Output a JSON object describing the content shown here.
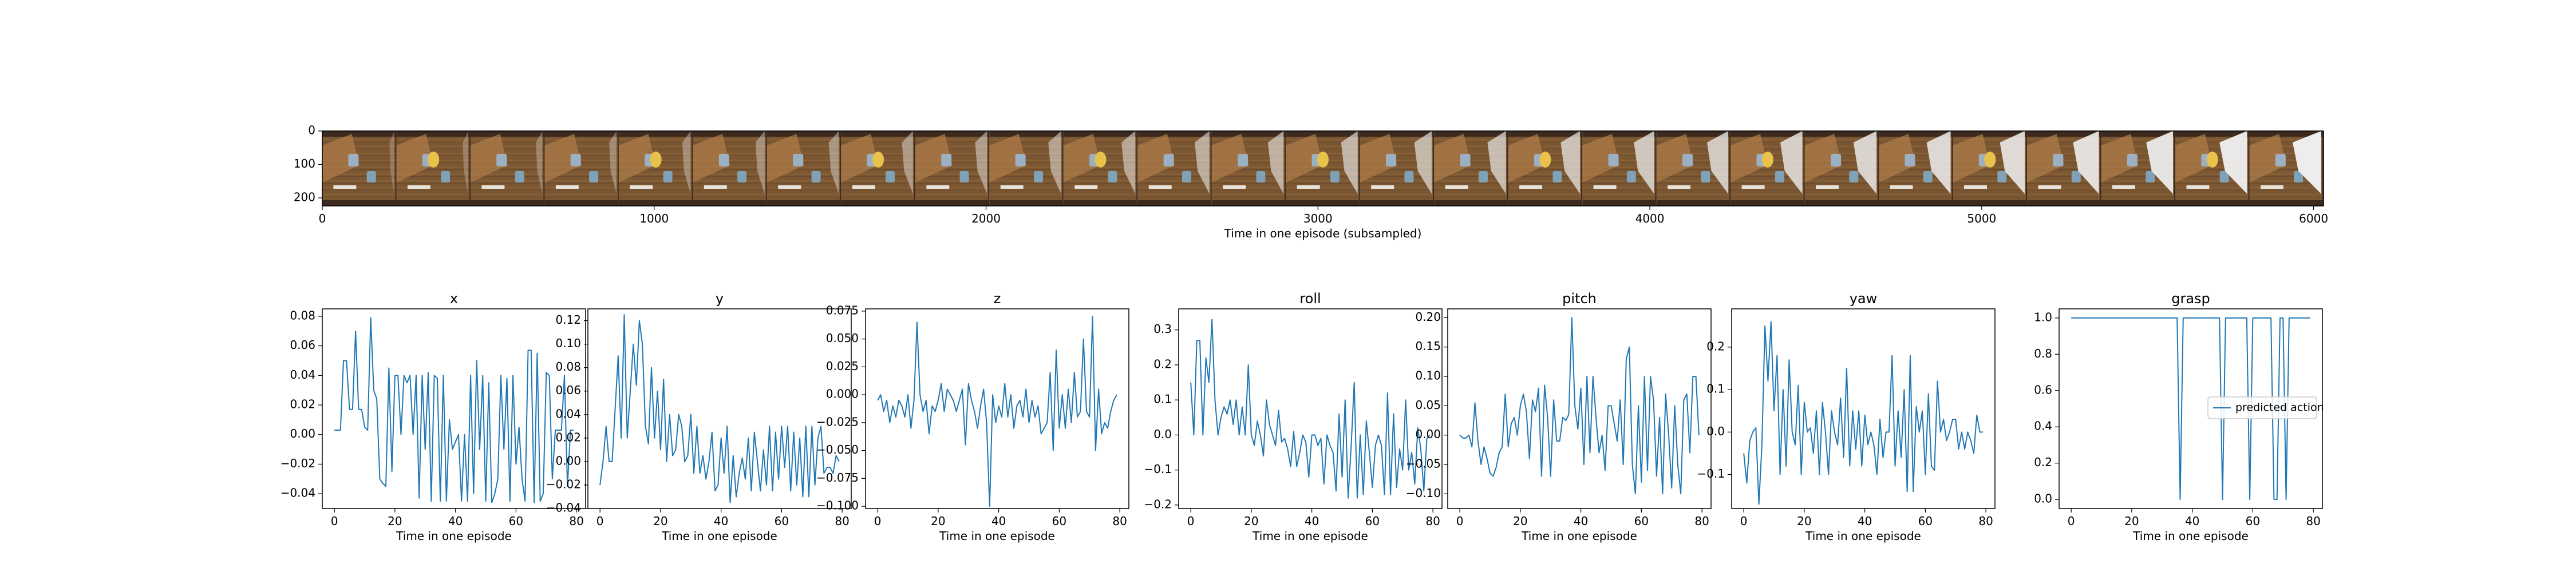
{
  "figure": {
    "strip": {
      "xlabel": "Time in one episode (subsampled)",
      "xticks": [
        0,
        1000,
        2000,
        3000,
        4000,
        5000,
        6000
      ],
      "yticks": [
        0,
        100,
        200
      ],
      "xlim": [
        0,
        6030
      ],
      "ylim": [
        224,
        0
      ],
      "frame_count": 27
    }
  },
  "chart_data": [
    {
      "type": "line",
      "title": "x",
      "xlabel": "Time in one episode",
      "xlim": [
        -4,
        83
      ],
      "ylim": [
        -0.05,
        0.085
      ],
      "xticks": [
        0,
        20,
        40,
        60,
        80
      ],
      "yticks": [
        -0.04,
        -0.02,
        0.0,
        0.02,
        0.04,
        0.06,
        0.08
      ],
      "ytick_labels": [
        "−0.04",
        "−0.02",
        "0.00",
        "0.02",
        "0.04",
        "0.06",
        "0.08"
      ],
      "color": "#1f77b4",
      "series": [
        {
          "values": [
            0.003,
            0.003,
            0.003,
            0.05,
            0.05,
            0.017,
            0.017,
            0.07,
            0.017,
            0.017,
            0.005,
            0.003,
            0.079,
            0.03,
            0.024,
            -0.03,
            -0.033,
            -0.035,
            0.045,
            -0.025,
            0.04,
            0.04,
            0.0,
            0.04,
            0.035,
            0.04,
            0.0,
            0.04,
            -0.043,
            0.04,
            -0.01,
            0.042,
            -0.045,
            0.04,
            0.038,
            -0.045,
            0.04,
            -0.045,
            0.01,
            -0.01,
            -0.005,
            0.0,
            -0.045,
            0.0,
            -0.045,
            0.04,
            -0.04,
            0.05,
            -0.01,
            0.04,
            -0.045,
            0.035,
            -0.046,
            -0.04,
            -0.03,
            0.04,
            -0.01,
            0.038,
            -0.045,
            0.04,
            -0.02,
            0.005,
            -0.03,
            -0.045,
            0.057,
            0.057,
            -0.046,
            0.055,
            -0.045,
            -0.04,
            0.042,
            0.04,
            -0.03,
            0.003,
            0.003,
            0.003,
            0.04,
            -0.035,
            0.003,
            0.003
          ]
        }
      ]
    },
    {
      "type": "line",
      "title": "y",
      "xlabel": "Time in one episode",
      "xlim": [
        -4,
        83
      ],
      "ylim": [
        -0.04,
        0.13
      ],
      "xticks": [
        0,
        20,
        40,
        60,
        80
      ],
      "yticks": [
        -0.04,
        -0.02,
        0.0,
        0.02,
        0.04,
        0.06,
        0.08,
        0.1,
        0.12
      ],
      "ytick_labels": [
        "−0.04",
        "−0.02",
        "0.00",
        "0.02",
        "0.04",
        "0.06",
        "0.08",
        "0.10",
        "0.12"
      ],
      "color": "#1f77b4",
      "series": [
        {
          "values": [
            -0.02,
            0.0,
            0.03,
            0.0,
            0.0,
            0.045,
            0.09,
            0.02,
            0.125,
            0.02,
            0.06,
            0.1,
            0.065,
            0.12,
            0.1,
            0.03,
            0.015,
            0.08,
            0.02,
            0.06,
            0.01,
            0.07,
            0.0,
            0.04,
            0.005,
            0.01,
            0.04,
            0.03,
            0.0,
            0.005,
            0.04,
            -0.01,
            0.03,
            -0.01,
            0.005,
            -0.015,
            0.0,
            0.025,
            -0.025,
            -0.02,
            0.02,
            -0.01,
            0.03,
            -0.035,
            0.005,
            -0.03,
            -0.01,
            0.003,
            -0.015,
            0.02,
            -0.025,
            0.025,
            0.0,
            -0.025,
            0.01,
            -0.02,
            0.03,
            -0.025,
            0.025,
            -0.015,
            0.03,
            -0.005,
            0.03,
            -0.025,
            0.025,
            -0.02,
            0.02,
            -0.03,
            0.03,
            -0.03,
            0.03,
            -0.02,
            0.02,
            0.03,
            -0.01,
            -0.005,
            -0.005,
            -0.01,
            0.005,
            0.0
          ]
        }
      ]
    },
    {
      "type": "line",
      "title": "z",
      "xlabel": "Time in one episode",
      "xlim": [
        -4,
        83
      ],
      "ylim": [
        -0.102,
        0.077
      ],
      "xticks": [
        0,
        20,
        40,
        60,
        80
      ],
      "yticks": [
        -0.1,
        -0.075,
        -0.05,
        -0.025,
        0.0,
        0.025,
        0.05,
        0.075
      ],
      "ytick_labels": [
        "−0.100",
        "−0.075",
        "−0.050",
        "−0.025",
        "0.000",
        "0.025",
        "0.050",
        "0.075"
      ],
      "color": "#1f77b4",
      "series": [
        {
          "values": [
            -0.005,
            0.0,
            -0.015,
            -0.005,
            -0.025,
            -0.01,
            -0.02,
            -0.005,
            -0.01,
            -0.02,
            0.0,
            -0.03,
            -0.005,
            0.065,
            0.0,
            -0.015,
            -0.005,
            -0.035,
            -0.01,
            -0.015,
            -0.005,
            0.01,
            -0.015,
            0.005,
            0.0,
            -0.005,
            -0.015,
            -0.005,
            0.005,
            -0.045,
            0.01,
            -0.005,
            -0.015,
            -0.03,
            -0.01,
            0.005,
            -0.025,
            -0.1,
            0.0,
            -0.025,
            -0.01,
            -0.02,
            0.01,
            -0.02,
            0.0,
            -0.03,
            -0.01,
            -0.005,
            -0.02,
            0.005,
            -0.025,
            -0.005,
            -0.02,
            -0.01,
            -0.035,
            -0.03,
            -0.025,
            0.02,
            -0.05,
            0.04,
            -0.03,
            0.0,
            -0.03,
            0.005,
            -0.025,
            0.02,
            -0.02,
            -0.015,
            0.05,
            -0.015,
            -0.02,
            0.07,
            -0.05,
            0.005,
            -0.035,
            -0.025,
            -0.03,
            -0.015,
            -0.005,
            0.0
          ]
        }
      ]
    },
    {
      "type": "line",
      "title": "roll",
      "xlabel": "Time in one episode",
      "xlim": [
        -4,
        83
      ],
      "ylim": [
        -0.21,
        0.36
      ],
      "xticks": [
        0,
        20,
        40,
        60,
        80
      ],
      "yticks": [
        -0.2,
        -0.1,
        0.0,
        0.1,
        0.2,
        0.3
      ],
      "ytick_labels": [
        "−0.2",
        "−0.1",
        "0.0",
        "0.1",
        "0.2",
        "0.3"
      ],
      "color": "#1f77b4",
      "series": [
        {
          "values": [
            0.15,
            0.0,
            0.27,
            0.27,
            0.0,
            0.22,
            0.15,
            0.33,
            0.1,
            0.0,
            0.05,
            0.08,
            0.06,
            0.1,
            0.03,
            0.1,
            0.0,
            0.08,
            0.0,
            0.2,
            0.0,
            -0.03,
            0.04,
            0.0,
            -0.06,
            0.1,
            0.03,
            0.0,
            -0.03,
            0.07,
            -0.02,
            -0.01,
            -0.04,
            -0.09,
            0.01,
            -0.09,
            -0.05,
            0.0,
            -0.02,
            -0.12,
            0.0,
            0.0,
            -0.03,
            -0.01,
            -0.14,
            0.0,
            -0.03,
            -0.05,
            -0.16,
            0.06,
            -0.12,
            0.1,
            -0.18,
            -0.03,
            0.15,
            -0.18,
            0.0,
            -0.17,
            0.04,
            -0.05,
            -0.15,
            -0.03,
            0.0,
            -0.03,
            -0.17,
            0.12,
            -0.17,
            0.06,
            -0.15,
            -0.04,
            -0.1,
            0.1,
            -0.1,
            -0.05,
            -0.14,
            0.02,
            -0.04,
            -0.16,
            -0.01,
            0.0
          ]
        }
      ]
    },
    {
      "type": "line",
      "title": "pitch",
      "xlabel": "Time in one episode",
      "xlim": [
        -4,
        83
      ],
      "ylim": [
        -0.125,
        0.215
      ],
      "xticks": [
        0,
        20,
        40,
        60,
        80
      ],
      "yticks": [
        -0.1,
        -0.05,
        0.0,
        0.05,
        0.1,
        0.15,
        0.2
      ],
      "ytick_labels": [
        "−0.10",
        "−0.05",
        "0.00",
        "0.05",
        "0.10",
        "0.15",
        "0.20"
      ],
      "color": "#1f77b4",
      "series": [
        {
          "values": [
            0.0,
            -0.005,
            -0.005,
            0.0,
            -0.02,
            0.055,
            -0.01,
            -0.05,
            -0.02,
            -0.04,
            -0.065,
            -0.07,
            -0.055,
            -0.03,
            -0.02,
            0.07,
            -0.02,
            0.02,
            0.03,
            0.0,
            0.05,
            0.07,
            0.04,
            -0.04,
            0.06,
            0.04,
            0.08,
            -0.07,
            0.085,
            0.03,
            -0.07,
            0.06,
            -0.01,
            -0.01,
            0.03,
            0.025,
            0.035,
            0.2,
            0.05,
            0.01,
            0.08,
            -0.05,
            0.1,
            -0.03,
            0.1,
            0.03,
            -0.03,
            0.0,
            -0.06,
            0.05,
            0.05,
            0.02,
            -0.01,
            0.06,
            -0.05,
            0.13,
            0.15,
            -0.05,
            -0.1,
            0.05,
            -0.08,
            0.1,
            -0.06,
            0.1,
            0.06,
            -0.07,
            0.03,
            -0.1,
            0.07,
            0.0,
            -0.09,
            0.05,
            -0.05,
            -0.1,
            0.06,
            0.07,
            -0.03,
            0.1,
            0.1,
            0.0
          ]
        }
      ]
    },
    {
      "type": "line",
      "title": "yaw",
      "xlabel": "Time in one episode",
      "xlim": [
        -4,
        83
      ],
      "ylim": [
        -0.18,
        0.29
      ],
      "xticks": [
        0,
        20,
        40,
        60,
        80
      ],
      "yticks": [
        -0.1,
        0.0,
        0.1,
        0.2
      ],
      "ytick_labels": [
        "−0.1",
        "0.0",
        "0.1",
        "0.2"
      ],
      "color": "#1f77b4",
      "series": [
        {
          "values": [
            -0.05,
            -0.12,
            -0.02,
            0.0,
            0.01,
            -0.17,
            -0.03,
            0.25,
            0.12,
            0.26,
            0.05,
            0.18,
            -0.1,
            0.1,
            -0.08,
            0.17,
            0.0,
            -0.03,
            0.11,
            -0.1,
            0.07,
            0.0,
            0.01,
            -0.05,
            0.05,
            -0.1,
            0.07,
            0.0,
            -0.1,
            0.05,
            0.0,
            -0.03,
            0.08,
            -0.06,
            0.15,
            -0.08,
            0.05,
            -0.04,
            0.05,
            -0.08,
            0.04,
            -0.03,
            0.0,
            -0.03,
            -0.1,
            0.03,
            -0.06,
            0.0,
            0.0,
            0.18,
            -0.08,
            0.05,
            -0.06,
            0.1,
            -0.14,
            0.18,
            -0.14,
            0.06,
            0.0,
            0.05,
            -0.1,
            0.09,
            -0.08,
            -0.09,
            0.12,
            0.0,
            0.03,
            -0.02,
            0.0,
            0.03,
            0.03,
            -0.04,
            0.0,
            -0.04,
            0.0,
            -0.02,
            -0.05,
            0.04,
            0.0,
            0.0
          ]
        }
      ]
    },
    {
      "type": "line",
      "title": "grasp",
      "xlabel": "Time in one episode",
      "xlim": [
        -4,
        83
      ],
      "ylim": [
        -0.05,
        1.05
      ],
      "xticks": [
        0,
        20,
        40,
        60,
        80
      ],
      "yticks": [
        0.0,
        0.2,
        0.4,
        0.6,
        0.8,
        1.0
      ],
      "ytick_labels": [
        "0.0",
        "0.2",
        "0.4",
        "0.6",
        "0.8",
        "1.0"
      ],
      "color": "#1f77b4",
      "legend": {
        "entries": [
          "predicted action"
        ],
        "placement": "center-right"
      },
      "series": [
        {
          "name": "predicted action",
          "values": [
            1,
            1,
            1,
            1,
            1,
            1,
            1,
            1,
            1,
            1,
            1,
            1,
            1,
            1,
            1,
            1,
            1,
            1,
            1,
            1,
            1,
            1,
            1,
            1,
            1,
            1,
            1,
            1,
            1,
            1,
            1,
            1,
            1,
            1,
            1,
            1,
            0,
            1,
            1,
            1,
            1,
            1,
            1,
            1,
            1,
            1,
            1,
            1,
            1,
            1,
            0,
            1,
            1,
            1,
            1,
            1,
            1,
            1,
            1,
            0,
            1,
            1,
            1,
            1,
            1,
            1,
            1,
            0,
            0,
            1,
            1,
            0,
            1,
            1,
            1,
            1,
            1,
            1,
            1,
            1
          ]
        }
      ]
    }
  ]
}
